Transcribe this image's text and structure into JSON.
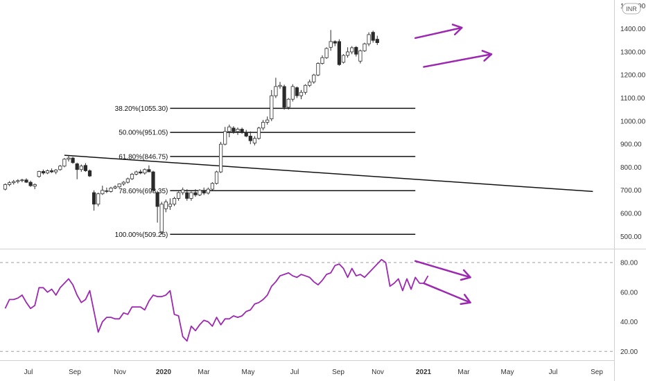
{
  "currency_badge": "INR",
  "colors": {
    "up": "#ffffff",
    "down": "#2a2a2a",
    "wick": "#2a2a2a",
    "annotation": "#9c27b0",
    "rsi_line": "#9c27b0",
    "grid_dash": "#9e9e9e"
  },
  "chart_data": [
    {
      "type": "candlestick",
      "title": "",
      "ylim": [
        450,
        1510
      ],
      "y_ticks": [
        "500.00",
        "600.00",
        "700.00",
        "800.00",
        "900.00",
        "1000.00",
        "1100.00",
        "1200.00",
        "1300.00",
        "1400.00",
        "1500.00"
      ],
      "x_ticks": [
        "Jul",
        "Sep",
        "Nov",
        "2020",
        "Mar",
        "May",
        "Jul",
        "Sep",
        "Nov",
        "2021",
        "Mar",
        "May",
        "Jul",
        "Sep"
      ],
      "x_ticks_bold": [
        "2020",
        "2021"
      ],
      "candles": [
        {
          "o": 705,
          "h": 730,
          "l": 700,
          "c": 725
        },
        {
          "o": 725,
          "h": 740,
          "l": 718,
          "c": 733
        },
        {
          "o": 733,
          "h": 745,
          "l": 725,
          "c": 738
        },
        {
          "o": 738,
          "h": 748,
          "l": 730,
          "c": 742
        },
        {
          "o": 742,
          "h": 750,
          "l": 735,
          "c": 745
        },
        {
          "o": 745,
          "h": 752,
          "l": 732,
          "c": 735
        },
        {
          "o": 735,
          "h": 742,
          "l": 715,
          "c": 720
        },
        {
          "o": 718,
          "h": 730,
          "l": 705,
          "c": 725
        },
        {
          "o": 760,
          "h": 785,
          "l": 755,
          "c": 782
        },
        {
          "o": 782,
          "h": 790,
          "l": 768,
          "c": 775
        },
        {
          "o": 775,
          "h": 790,
          "l": 770,
          "c": 785
        },
        {
          "o": 785,
          "h": 795,
          "l": 775,
          "c": 780
        },
        {
          "o": 780,
          "h": 792,
          "l": 770,
          "c": 788
        },
        {
          "o": 790,
          "h": 810,
          "l": 785,
          "c": 805
        },
        {
          "o": 805,
          "h": 840,
          "l": 800,
          "c": 835
        },
        {
          "o": 835,
          "h": 850,
          "l": 825,
          "c": 840
        },
        {
          "o": 840,
          "h": 845,
          "l": 815,
          "c": 820
        },
        {
          "o": 815,
          "h": 820,
          "l": 748,
          "c": 790
        },
        {
          "o": 790,
          "h": 812,
          "l": 780,
          "c": 805
        },
        {
          "o": 808,
          "h": 818,
          "l": 780,
          "c": 785
        },
        {
          "o": 785,
          "h": 790,
          "l": 758,
          "c": 762
        },
        {
          "o": 690,
          "h": 700,
          "l": 612,
          "c": 640
        },
        {
          "o": 640,
          "h": 690,
          "l": 630,
          "c": 685
        },
        {
          "o": 685,
          "h": 720,
          "l": 680,
          "c": 700
        },
        {
          "o": 698,
          "h": 712,
          "l": 688,
          "c": 695
        },
        {
          "o": 695,
          "h": 715,
          "l": 690,
          "c": 710
        },
        {
          "o": 710,
          "h": 722,
          "l": 705,
          "c": 715
        },
        {
          "o": 715,
          "h": 730,
          "l": 710,
          "c": 728
        },
        {
          "o": 728,
          "h": 740,
          "l": 720,
          "c": 735
        },
        {
          "o": 735,
          "h": 755,
          "l": 730,
          "c": 750
        },
        {
          "o": 750,
          "h": 775,
          "l": 745,
          "c": 770
        },
        {
          "o": 770,
          "h": 785,
          "l": 765,
          "c": 780
        },
        {
          "o": 780,
          "h": 790,
          "l": 770,
          "c": 775
        },
        {
          "o": 775,
          "h": 795,
          "l": 768,
          "c": 790
        },
        {
          "o": 790,
          "h": 808,
          "l": 780,
          "c": 780
        },
        {
          "o": 780,
          "h": 785,
          "l": 690,
          "c": 700
        },
        {
          "o": 690,
          "h": 698,
          "l": 560,
          "c": 630
        },
        {
          "o": 520,
          "h": 650,
          "l": 509,
          "c": 640
        },
        {
          "o": 620,
          "h": 660,
          "l": 605,
          "c": 650
        },
        {
          "o": 630,
          "h": 665,
          "l": 615,
          "c": 640
        },
        {
          "o": 640,
          "h": 672,
          "l": 632,
          "c": 665
        },
        {
          "o": 665,
          "h": 695,
          "l": 655,
          "c": 690
        },
        {
          "o": 690,
          "h": 712,
          "l": 680,
          "c": 702
        },
        {
          "o": 690,
          "h": 705,
          "l": 655,
          "c": 665
        },
        {
          "o": 665,
          "h": 695,
          "l": 655,
          "c": 690
        },
        {
          "o": 690,
          "h": 705,
          "l": 672,
          "c": 680
        },
        {
          "o": 680,
          "h": 705,
          "l": 675,
          "c": 700
        },
        {
          "o": 700,
          "h": 712,
          "l": 680,
          "c": 688
        },
        {
          "o": 688,
          "h": 712,
          "l": 682,
          "c": 705
        },
        {
          "o": 705,
          "h": 735,
          "l": 700,
          "c": 730
        },
        {
          "o": 730,
          "h": 785,
          "l": 725,
          "c": 780
        },
        {
          "o": 780,
          "h": 910,
          "l": 775,
          "c": 900
        },
        {
          "o": 900,
          "h": 975,
          "l": 895,
          "c": 955
        },
        {
          "o": 955,
          "h": 985,
          "l": 930,
          "c": 975
        },
        {
          "o": 970,
          "h": 978,
          "l": 945,
          "c": 955
        },
        {
          "o": 955,
          "h": 972,
          "l": 940,
          "c": 965
        },
        {
          "o": 965,
          "h": 972,
          "l": 945,
          "c": 950
        },
        {
          "o": 950,
          "h": 962,
          "l": 930,
          "c": 935
        },
        {
          "o": 935,
          "h": 955,
          "l": 900,
          "c": 915
        },
        {
          "o": 905,
          "h": 935,
          "l": 895,
          "c": 925
        },
        {
          "o": 925,
          "h": 975,
          "l": 920,
          "c": 970
        },
        {
          "o": 970,
          "h": 1005,
          "l": 960,
          "c": 995
        },
        {
          "o": 995,
          "h": 1020,
          "l": 985,
          "c": 1005
        },
        {
          "o": 1010,
          "h": 1135,
          "l": 1000,
          "c": 1110
        },
        {
          "o": 1110,
          "h": 1188,
          "l": 1100,
          "c": 1150
        },
        {
          "o": 1150,
          "h": 1170,
          "l": 1140,
          "c": 1155
        },
        {
          "o": 1150,
          "h": 1158,
          "l": 1050,
          "c": 1060
        },
        {
          "o": 1060,
          "h": 1100,
          "l": 1050,
          "c": 1095
        },
        {
          "o": 1095,
          "h": 1160,
          "l": 1085,
          "c": 1150
        },
        {
          "o": 1145,
          "h": 1150,
          "l": 1100,
          "c": 1110
        },
        {
          "o": 1110,
          "h": 1135,
          "l": 1095,
          "c": 1125
        },
        {
          "o": 1125,
          "h": 1160,
          "l": 1115,
          "c": 1155
        },
        {
          "o": 1155,
          "h": 1180,
          "l": 1148,
          "c": 1170
        },
        {
          "o": 1170,
          "h": 1205,
          "l": 1162,
          "c": 1200
        },
        {
          "o": 1200,
          "h": 1255,
          "l": 1195,
          "c": 1250
        },
        {
          "o": 1250,
          "h": 1285,
          "l": 1245,
          "c": 1275
        },
        {
          "o": 1275,
          "h": 1320,
          "l": 1270,
          "c": 1315
        },
        {
          "o": 1320,
          "h": 1395,
          "l": 1305,
          "c": 1345
        },
        {
          "o": 1345,
          "h": 1350,
          "l": 1325,
          "c": 1338
        },
        {
          "o": 1345,
          "h": 1355,
          "l": 1240,
          "c": 1245
        },
        {
          "o": 1255,
          "h": 1290,
          "l": 1250,
          "c": 1285
        },
        {
          "o": 1285,
          "h": 1320,
          "l": 1275,
          "c": 1300
        },
        {
          "o": 1300,
          "h": 1325,
          "l": 1290,
          "c": 1318
        },
        {
          "o": 1320,
          "h": 1325,
          "l": 1280,
          "c": 1290
        },
        {
          "o": 1260,
          "h": 1310,
          "l": 1250,
          "c": 1305
        },
        {
          "o": 1305,
          "h": 1340,
          "l": 1300,
          "c": 1335
        },
        {
          "o": 1335,
          "h": 1385,
          "l": 1325,
          "c": 1375
        },
        {
          "o": 1385,
          "h": 1392,
          "l": 1340,
          "c": 1350
        },
        {
          "o": 1355,
          "h": 1370,
          "l": 1330,
          "c": 1340
        }
      ],
      "trendline": {
        "from": {
          "index": 14,
          "value": 852
        },
        "to": {
          "index": 139,
          "value": 695
        }
      },
      "fib_levels": [
        {
          "label": "38.20%(1055.30)",
          "value": 1055.3
        },
        {
          "label": "50.00%(951.05)",
          "value": 951.05
        },
        {
          "label": "61.80%(846.75)",
          "value": 846.75
        },
        {
          "label": "78.60%(698.35)",
          "value": 698.35
        },
        {
          "label": "100.00%(509.25)",
          "value": 509.25
        }
      ],
      "fib_span": {
        "from_index": 39,
        "to_index": 97
      },
      "annotation_arrows": [
        {
          "from": {
            "index": 97,
            "value": 1360
          },
          "to": {
            "index": 108,
            "value": 1405
          }
        },
        {
          "from": {
            "index": 99,
            "value": 1235
          },
          "to": {
            "index": 115,
            "value": 1290
          }
        }
      ]
    },
    {
      "type": "line",
      "title": "",
      "ylim": [
        15,
        87
      ],
      "y_ticks": [
        "20.00",
        "40.00",
        "60.00",
        "80.00"
      ],
      "bands": [
        80,
        20
      ],
      "values": [
        49,
        55,
        55,
        56,
        58,
        53,
        49,
        51,
        63,
        63,
        60,
        62,
        58,
        63,
        66,
        69,
        65,
        58,
        53,
        55,
        61,
        47,
        33,
        40,
        43,
        43,
        42,
        42,
        46,
        45,
        50,
        50,
        50,
        48,
        54,
        58,
        57,
        57,
        58,
        61,
        45,
        44,
        30,
        27,
        37,
        34,
        38,
        41,
        40,
        37,
        43,
        38,
        42,
        42,
        44,
        43,
        44,
        47,
        48,
        52,
        53,
        55,
        58,
        64,
        67,
        71,
        72,
        73,
        71,
        70,
        72,
        71,
        70,
        67,
        65,
        68,
        72,
        73,
        78,
        79,
        76,
        70,
        76,
        71,
        72,
        70,
        73,
        76,
        79,
        82,
        80,
        64,
        66,
        69,
        61,
        69,
        62,
        70,
        66,
        66,
        71
      ],
      "start_index": 0,
      "annotation_arrows": [
        {
          "from": {
            "index": 97,
            "value": 81
          },
          "to": {
            "index": 110,
            "value": 70
          }
        },
        {
          "from": {
            "index": 99,
            "value": 66
          },
          "to": {
            "index": 110,
            "value": 53
          }
        }
      ]
    }
  ]
}
